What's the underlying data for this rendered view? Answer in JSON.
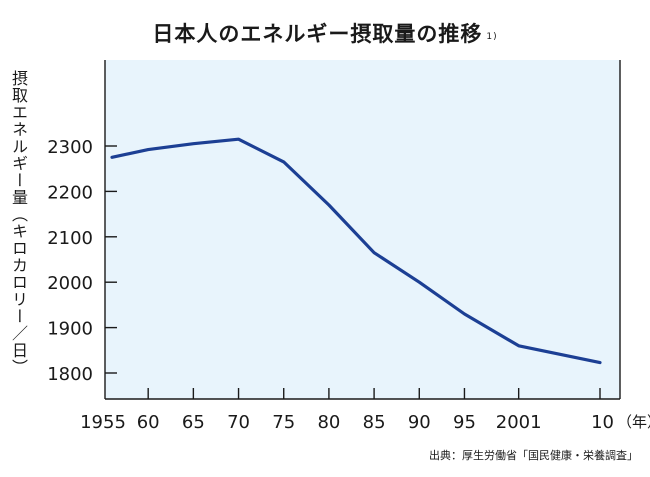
{
  "chart_data": {
    "type": "line",
    "title": "日本人のエネルギー摂取量の推移",
    "title_note": "1)",
    "ylabel": "摂取エネルギー量（キロカロリー／日）",
    "xlabel_unit": "（年）",
    "x_tick_labels": [
      "1955",
      "60",
      "65",
      "70",
      "75",
      "80",
      "85",
      "90",
      "95",
      "2001",
      "10"
    ],
    "x_tick_years": [
      1955,
      1960,
      1965,
      1970,
      1975,
      1980,
      1985,
      1990,
      1995,
      2001,
      2010
    ],
    "y_ticks": [
      1800,
      1900,
      2000,
      2100,
      2200,
      2300
    ],
    "xlim": [
      1955,
      2010
    ],
    "ylim": [
      1735,
      2420
    ],
    "series": [
      {
        "x": [
          1956,
          1960,
          1965,
          1970,
          1975,
          1980,
          1985,
          1990,
          1995,
          2001,
          2010
        ],
        "values": [
          2275,
          2292,
          2305,
          2315,
          2265,
          2170,
          2065,
          2000,
          1930,
          1860,
          1823
        ]
      }
    ],
    "grid": false,
    "background": "#e8f4fc",
    "line_color": "#1c3f94",
    "source": "出典：厚生労働省「国民健康・栄養調査」"
  }
}
